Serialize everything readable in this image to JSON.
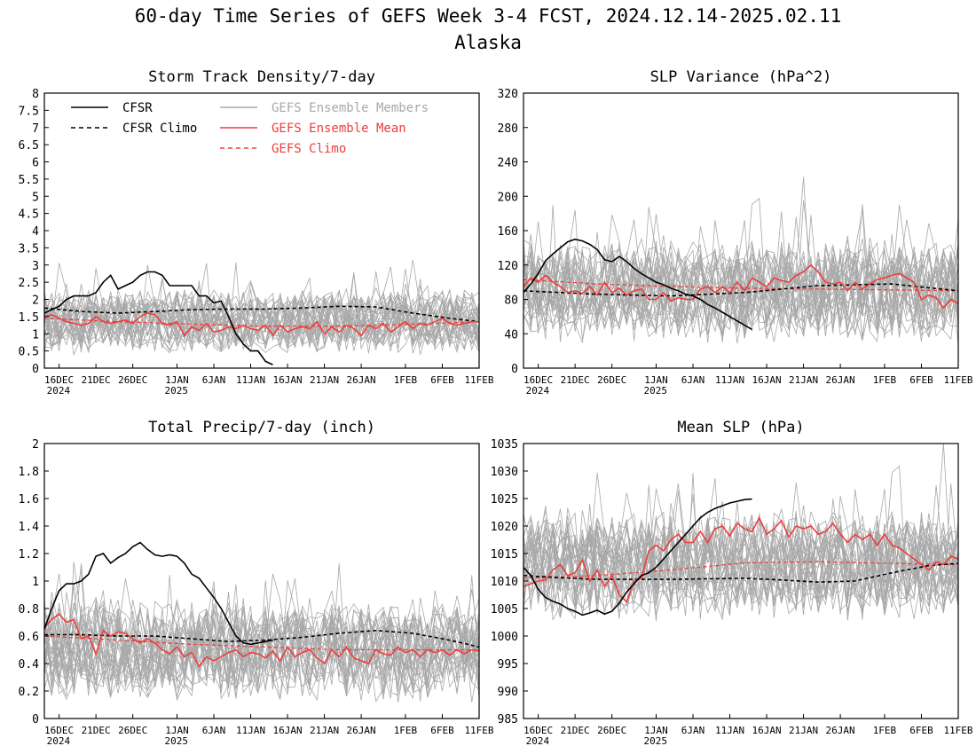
{
  "page": {
    "title": "60-day Time Series of GEFS Week 3-4 FCST, 2024.12.14-2025.02.11",
    "subtitle": "Alaska"
  },
  "legend": {
    "cfsr": "CFSR",
    "cfsr_climo": "CFSR Climo",
    "members": "GEFS Ensemble Members",
    "mean": "GEFS Ensemble Mean",
    "gefs_climo": "GEFS Climo"
  },
  "colors": {
    "cfsr": "#000000",
    "members": "#a8a8a8",
    "mean": "#f03c3c",
    "gefs_climo": "#f03c3c"
  },
  "date_ticks": [
    {
      "day": 2,
      "label": "16DEC",
      "sub": "2024"
    },
    {
      "day": 7,
      "label": "21DEC"
    },
    {
      "day": 12,
      "label": "26DEC"
    },
    {
      "day": 18,
      "label": "1JAN",
      "sub": "2025"
    },
    {
      "day": 23,
      "label": "6JAN"
    },
    {
      "day": 28,
      "label": "11JAN"
    },
    {
      "day": 33,
      "label": "16JAN"
    },
    {
      "day": 38,
      "label": "21JAN"
    },
    {
      "day": 43,
      "label": "26JAN"
    },
    {
      "day": 49,
      "label": "1FEB"
    },
    {
      "day": 54,
      "label": "6FEB"
    },
    {
      "day": 59,
      "label": "11FEB"
    }
  ],
  "chart_data": [
    {
      "type": "line",
      "title": "Storm Track Density/7-day",
      "xlim": [
        0,
        59
      ],
      "ylim": [
        0,
        8
      ],
      "yticks": [
        "0",
        "0.5",
        "1",
        "1.5",
        "2",
        "2.5",
        "3",
        "3.5",
        "4",
        "4.5",
        "5",
        "5.5",
        "6",
        "6.5",
        "7",
        "7.5",
        "8"
      ],
      "ytick_step": 0.5,
      "members": {
        "count": 31,
        "center": 1.35,
        "spread": 0.75,
        "min": 0.05,
        "max": 4.8
      },
      "series": [
        {
          "key": "cfsr",
          "x": [
            0,
            1,
            2,
            3,
            4,
            5,
            6,
            7,
            8,
            9,
            10,
            11,
            12,
            13,
            14,
            15,
            16,
            17,
            18,
            19,
            20,
            21,
            22,
            23,
            24,
            25,
            26,
            27,
            28,
            29,
            30,
            31
          ],
          "values": [
            1.6,
            1.7,
            1.8,
            2.0,
            2.1,
            2.1,
            2.1,
            2.2,
            2.5,
            2.7,
            2.3,
            2.4,
            2.5,
            2.7,
            2.8,
            2.8,
            2.7,
            2.4,
            2.4,
            2.4,
            2.4,
            2.1,
            2.1,
            1.9,
            1.95,
            1.5,
            1.0,
            0.7,
            0.5,
            0.5,
            0.2,
            0.1
          ]
        },
        {
          "key": "cfsr_climo",
          "x": [
            0,
            5,
            10,
            15,
            20,
            25,
            30,
            35,
            40,
            45,
            50,
            55,
            59
          ],
          "values": [
            1.75,
            1.65,
            1.6,
            1.65,
            1.7,
            1.72,
            1.72,
            1.75,
            1.8,
            1.78,
            1.6,
            1.45,
            1.35
          ]
        },
        {
          "key": "mean",
          "x": [
            0,
            1,
            2,
            3,
            4,
            5,
            6,
            7,
            8,
            9,
            10,
            11,
            12,
            13,
            14,
            15,
            16,
            17,
            18,
            19,
            20,
            21,
            22,
            23,
            24,
            25,
            26,
            27,
            28,
            29,
            30,
            31,
            32,
            33,
            34,
            35,
            36,
            37,
            38,
            39,
            40,
            41,
            42,
            43,
            44,
            45,
            46,
            47,
            48,
            49,
            50,
            51,
            52,
            53,
            54,
            55,
            56,
            57,
            58,
            59
          ],
          "values": [
            1.5,
            1.55,
            1.45,
            1.35,
            1.3,
            1.25,
            1.3,
            1.5,
            1.35,
            1.3,
            1.35,
            1.4,
            1.3,
            1.5,
            1.6,
            1.55,
            1.3,
            1.25,
            1.35,
            0.95,
            1.2,
            1.1,
            1.3,
            1.05,
            1.1,
            1.2,
            1.15,
            1.25,
            1.15,
            1.1,
            1.25,
            0.95,
            1.25,
            1.05,
            1.15,
            1.2,
            1.15,
            1.35,
            1.0,
            1.2,
            1.05,
            1.25,
            1.15,
            0.95,
            1.25,
            1.15,
            1.3,
            1.05,
            1.2,
            1.35,
            1.15,
            1.3,
            1.25,
            1.35,
            1.45,
            1.3,
            1.25,
            1.3,
            1.35,
            1.35
          ]
        },
        {
          "key": "gefs_climo",
          "x": [
            0,
            10,
            20,
            30,
            40,
            50,
            59
          ],
          "values": [
            1.45,
            1.35,
            1.28,
            1.22,
            1.22,
            1.28,
            1.35
          ]
        }
      ]
    },
    {
      "type": "line",
      "title": "SLP Variance (hPa^2)",
      "xlim": [
        0,
        59
      ],
      "ylim": [
        0,
        320
      ],
      "yticks": [
        "0",
        "40",
        "80",
        "120",
        "160",
        "200",
        "240",
        "280",
        "320"
      ],
      "ytick_step": 40,
      "members": {
        "count": 31,
        "center": 90,
        "spread": 48,
        "min": 25,
        "max": 305
      },
      "series": [
        {
          "key": "cfsr",
          "x": [
            0,
            1,
            2,
            3,
            4,
            5,
            6,
            7,
            8,
            9,
            10,
            11,
            12,
            13,
            14,
            15,
            16,
            17,
            18,
            19,
            20,
            21,
            22,
            23,
            24,
            25,
            26,
            27,
            28,
            29,
            30,
            31
          ],
          "values": [
            88,
            98,
            110,
            125,
            133,
            140,
            147,
            150,
            148,
            144,
            138,
            126,
            124,
            130,
            124,
            116,
            110,
            105,
            100,
            97,
            93,
            90,
            86,
            84,
            80,
            74,
            70,
            65,
            60,
            55,
            50,
            45
          ]
        },
        {
          "key": "cfsr_climo",
          "x": [
            0,
            10,
            20,
            30,
            40,
            50,
            59
          ],
          "values": [
            90,
            86,
            84,
            88,
            96,
            98,
            90
          ]
        },
        {
          "key": "mean",
          "x": [
            0,
            1,
            2,
            3,
            4,
            5,
            6,
            7,
            8,
            9,
            10,
            11,
            12,
            13,
            14,
            15,
            16,
            17,
            18,
            19,
            20,
            21,
            22,
            23,
            24,
            25,
            26,
            27,
            28,
            29,
            30,
            31,
            32,
            33,
            34,
            35,
            36,
            37,
            38,
            39,
            40,
            41,
            42,
            43,
            44,
            45,
            46,
            47,
            48,
            49,
            50,
            51,
            52,
            53,
            54,
            55,
            56,
            57,
            58,
            59
          ],
          "values": [
            95,
            105,
            100,
            108,
            100,
            95,
            88,
            90,
            87,
            95,
            85,
            100,
            88,
            93,
            85,
            90,
            92,
            80,
            80,
            88,
            78,
            82,
            80,
            80,
            92,
            95,
            88,
            95,
            88,
            100,
            90,
            105,
            100,
            95,
            105,
            102,
            100,
            108,
            112,
            120,
            112,
            100,
            98,
            100,
            90,
            100,
            92,
            98,
            103,
            105,
            108,
            110,
            105,
            100,
            80,
            85,
            82,
            70,
            80,
            75
          ]
        },
        {
          "key": "gefs_climo",
          "x": [
            0,
            10,
            20,
            30,
            40,
            50,
            59
          ],
          "values": [
            103,
            98,
            95,
            93,
            92,
            91,
            90
          ]
        }
      ]
    },
    {
      "type": "line",
      "title": "Total Precip/7-day (inch)",
      "xlim": [
        0,
        59
      ],
      "ylim": [
        0,
        2
      ],
      "yticks": [
        "0",
        "0.2",
        "0.4",
        "0.6",
        "0.8",
        "1",
        "1.2",
        "1.4",
        "1.6",
        "1.8",
        "2"
      ],
      "ytick_step": 0.2,
      "members": {
        "count": 31,
        "center": 0.5,
        "spread": 0.3,
        "min": 0.05,
        "max": 1.42
      },
      "series": [
        {
          "key": "cfsr",
          "x": [
            0,
            1,
            2,
            3,
            4,
            5,
            6,
            7,
            8,
            9,
            10,
            11,
            12,
            13,
            14,
            15,
            16,
            17,
            18,
            19,
            20,
            21,
            22,
            23,
            24,
            25,
            26,
            27,
            28,
            29,
            30,
            31
          ],
          "values": [
            0.65,
            0.8,
            0.93,
            0.98,
            0.98,
            1.0,
            1.05,
            1.18,
            1.2,
            1.13,
            1.17,
            1.2,
            1.25,
            1.28,
            1.23,
            1.19,
            1.18,
            1.19,
            1.18,
            1.13,
            1.05,
            1.02,
            0.95,
            0.88,
            0.8,
            0.7,
            0.6,
            0.55,
            0.54,
            0.55,
            0.56,
            0.57
          ]
        },
        {
          "key": "cfsr_climo",
          "x": [
            0,
            5,
            10,
            15,
            20,
            25,
            30,
            35,
            40,
            45,
            50,
            55,
            59
          ],
          "values": [
            0.61,
            0.61,
            0.6,
            0.6,
            0.58,
            0.56,
            0.57,
            0.59,
            0.62,
            0.64,
            0.62,
            0.57,
            0.52
          ]
        },
        {
          "key": "mean",
          "x": [
            0,
            1,
            2,
            3,
            4,
            5,
            6,
            7,
            8,
            9,
            10,
            11,
            12,
            13,
            14,
            15,
            16,
            17,
            18,
            19,
            20,
            21,
            22,
            23,
            24,
            25,
            26,
            27,
            28,
            29,
            30,
            31,
            32,
            33,
            34,
            35,
            36,
            37,
            38,
            39,
            40,
            41,
            42,
            43,
            44,
            45,
            46,
            47,
            48,
            49,
            50,
            51,
            52,
            53,
            54,
            55,
            56,
            57,
            58,
            59
          ],
          "values": [
            0.66,
            0.72,
            0.76,
            0.7,
            0.72,
            0.58,
            0.6,
            0.47,
            0.64,
            0.6,
            0.63,
            0.62,
            0.58,
            0.55,
            0.58,
            0.55,
            0.5,
            0.47,
            0.52,
            0.45,
            0.48,
            0.38,
            0.45,
            0.42,
            0.45,
            0.48,
            0.5,
            0.45,
            0.48,
            0.47,
            0.44,
            0.49,
            0.42,
            0.52,
            0.45,
            0.48,
            0.5,
            0.44,
            0.4,
            0.5,
            0.45,
            0.52,
            0.44,
            0.42,
            0.4,
            0.5,
            0.47,
            0.46,
            0.52,
            0.48,
            0.5,
            0.45,
            0.5,
            0.48,
            0.5,
            0.46,
            0.5,
            0.47,
            0.5,
            0.49
          ]
        },
        {
          "key": "gefs_climo",
          "x": [
            0,
            10,
            20,
            30,
            40,
            50,
            59
          ],
          "values": [
            0.6,
            0.57,
            0.54,
            0.52,
            0.5,
            0.5,
            0.5
          ]
        }
      ]
    },
    {
      "type": "line",
      "title": "Mean SLP (hPa)",
      "xlim": [
        0,
        59
      ],
      "ylim": [
        985,
        1035
      ],
      "yticks": [
        "985",
        "990",
        "995",
        "1000",
        "1005",
        "1010",
        "1015",
        "1020",
        "1025",
        "1030",
        "1035"
      ],
      "ytick_step": 5,
      "members": {
        "count": 31,
        "center": 1013,
        "spread": 8,
        "min": 994,
        "max": 1035
      },
      "series": [
        {
          "key": "cfsr",
          "x": [
            0,
            1,
            2,
            3,
            4,
            5,
            6,
            7,
            8,
            9,
            10,
            11,
            12,
            13,
            14,
            15,
            16,
            17,
            18,
            19,
            20,
            21,
            22,
            23,
            24,
            25,
            26,
            27,
            28,
            29,
            30,
            31
          ],
          "values": [
            1012.5,
            1011,
            1008.5,
            1007,
            1006.3,
            1005.8,
            1005,
            1004.5,
            1003.8,
            1004.2,
            1004.7,
            1004,
            1004.5,
            1006,
            1008,
            1009.5,
            1011,
            1011.5,
            1012.5,
            1014,
            1015.5,
            1017,
            1018.5,
            1020,
            1021.5,
            1022.5,
            1023.2,
            1023.7,
            1024.2,
            1024.5,
            1024.8,
            1024.9
          ]
        },
        {
          "key": "cfsr_climo",
          "x": [
            0,
            5,
            10,
            15,
            20,
            25,
            30,
            35,
            40,
            45,
            50,
            55,
            59
          ],
          "values": [
            1011,
            1010.6,
            1010.3,
            1010.3,
            1010.3,
            1010.4,
            1010.5,
            1010.2,
            1009.8,
            1010,
            1011.5,
            1012.8,
            1013.2
          ]
        },
        {
          "key": "mean",
          "x": [
            0,
            1,
            2,
            3,
            4,
            5,
            6,
            7,
            8,
            9,
            10,
            11,
            12,
            13,
            14,
            15,
            16,
            17,
            18,
            19,
            20,
            21,
            22,
            23,
            24,
            25,
            26,
            27,
            28,
            29,
            30,
            31,
            32,
            33,
            34,
            35,
            36,
            37,
            38,
            39,
            40,
            41,
            42,
            43,
            44,
            45,
            46,
            47,
            48,
            49,
            50,
            51,
            52,
            53,
            54,
            55,
            56,
            57,
            58,
            59
          ],
          "values": [
            1009,
            1009.5,
            1010,
            1010.2,
            1012,
            1013,
            1011,
            1011.5,
            1013.8,
            1010,
            1012,
            1009,
            1011,
            1007.5,
            1006.2,
            1010,
            1010.5,
            1015.5,
            1016.5,
            1015.5,
            1017.5,
            1018.5,
            1017,
            1017,
            1019,
            1017,
            1019.5,
            1020,
            1018.2,
            1020.5,
            1019.5,
            1019,
            1021.5,
            1018.5,
            1019.5,
            1021,
            1018,
            1020,
            1019.5,
            1020,
            1018.5,
            1019,
            1020.5,
            1018.5,
            1017,
            1018.5,
            1017.5,
            1018.5,
            1016.5,
            1018.5,
            1016.5,
            1016,
            1015,
            1014,
            1013,
            1012,
            1013.5,
            1013,
            1014.5,
            1014
          ]
        },
        {
          "key": "gefs_climo",
          "x": [
            0,
            10,
            20,
            30,
            40,
            50,
            59
          ],
          "values": [
            1010.5,
            1011,
            1012,
            1013.3,
            1013.5,
            1013.2,
            1013
          ]
        }
      ]
    }
  ]
}
